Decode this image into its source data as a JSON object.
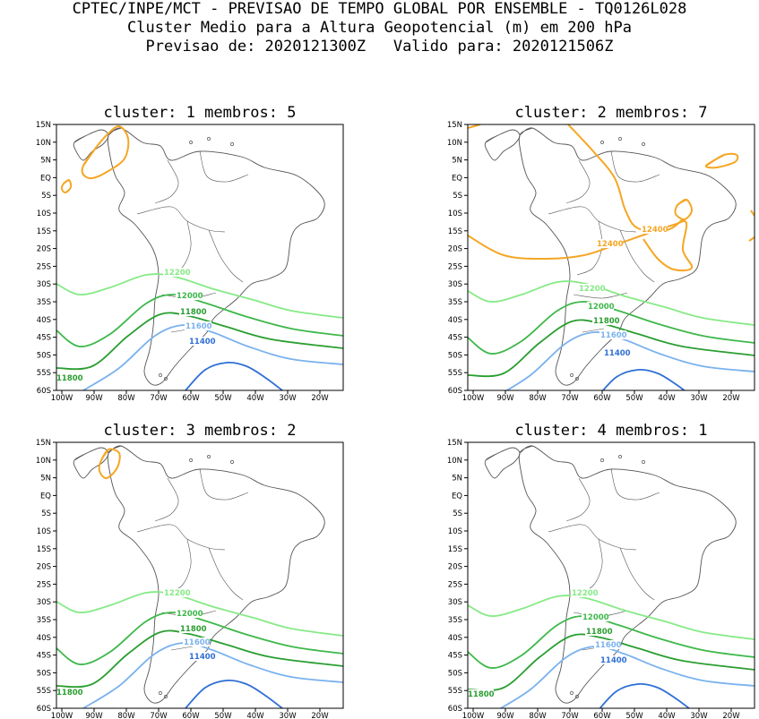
{
  "header": {
    "line1": "CPTEC/INPE/MCT - PREVISAO DE TEMPO GLOBAL POR ENSEMBLE - TQ0126L028",
    "line2": "Cluster Medio para a Altura Geopotencial (m) em 200 hPa",
    "line3": "Previsao de: 2020121300Z   Valido para: 2020121506Z"
  },
  "colors": {
    "c11400": "#2f6fd6",
    "c11600": "#7ab2ee",
    "c11800": "#2a9e30",
    "c12000": "#3db84a",
    "c12200": "#86ea86",
    "c12400": "#f5a623",
    "map": "#555555"
  },
  "axes": {
    "lat_labels": [
      "15N",
      "10N",
      "5N",
      "EQ",
      "5S",
      "10S",
      "15S",
      "20S",
      "25S",
      "30S",
      "35S",
      "40S",
      "45S",
      "50S",
      "55S",
      "60S"
    ],
    "lon_labels": [
      "100W",
      "90W",
      "80W",
      "70W",
      "60W",
      "50W",
      "40W",
      "30W",
      "20W"
    ]
  },
  "chart_data": [
    {
      "type": "contour",
      "title": "cluster: 1   membros: 5",
      "contour_levels": [
        11400,
        11600,
        11800,
        12000,
        12200,
        12400
      ],
      "labels": [
        "12200",
        "12000",
        "11800",
        "11600",
        "11400",
        "11800"
      ]
    },
    {
      "type": "contour",
      "title": "cluster: 2   membros: 7",
      "contour_levels": [
        11400,
        11600,
        11800,
        12000,
        12200,
        12400
      ],
      "labels": [
        "12200",
        "12000",
        "11800",
        "11600",
        "11400",
        "12400",
        "12400"
      ]
    },
    {
      "type": "contour",
      "title": "cluster: 3   membros: 2",
      "contour_levels": [
        11400,
        11600,
        11800,
        12000,
        12200,
        12400
      ],
      "labels": [
        "12200",
        "12000",
        "11800",
        "11600",
        "11400",
        "11800"
      ]
    },
    {
      "type": "contour",
      "title": "cluster: 4   membros: 1",
      "contour_levels": [
        11400,
        11600,
        11800,
        12000,
        12200
      ],
      "labels": [
        "12200",
        "12000",
        "11800",
        "11600",
        "11400",
        "11800"
      ]
    }
  ]
}
